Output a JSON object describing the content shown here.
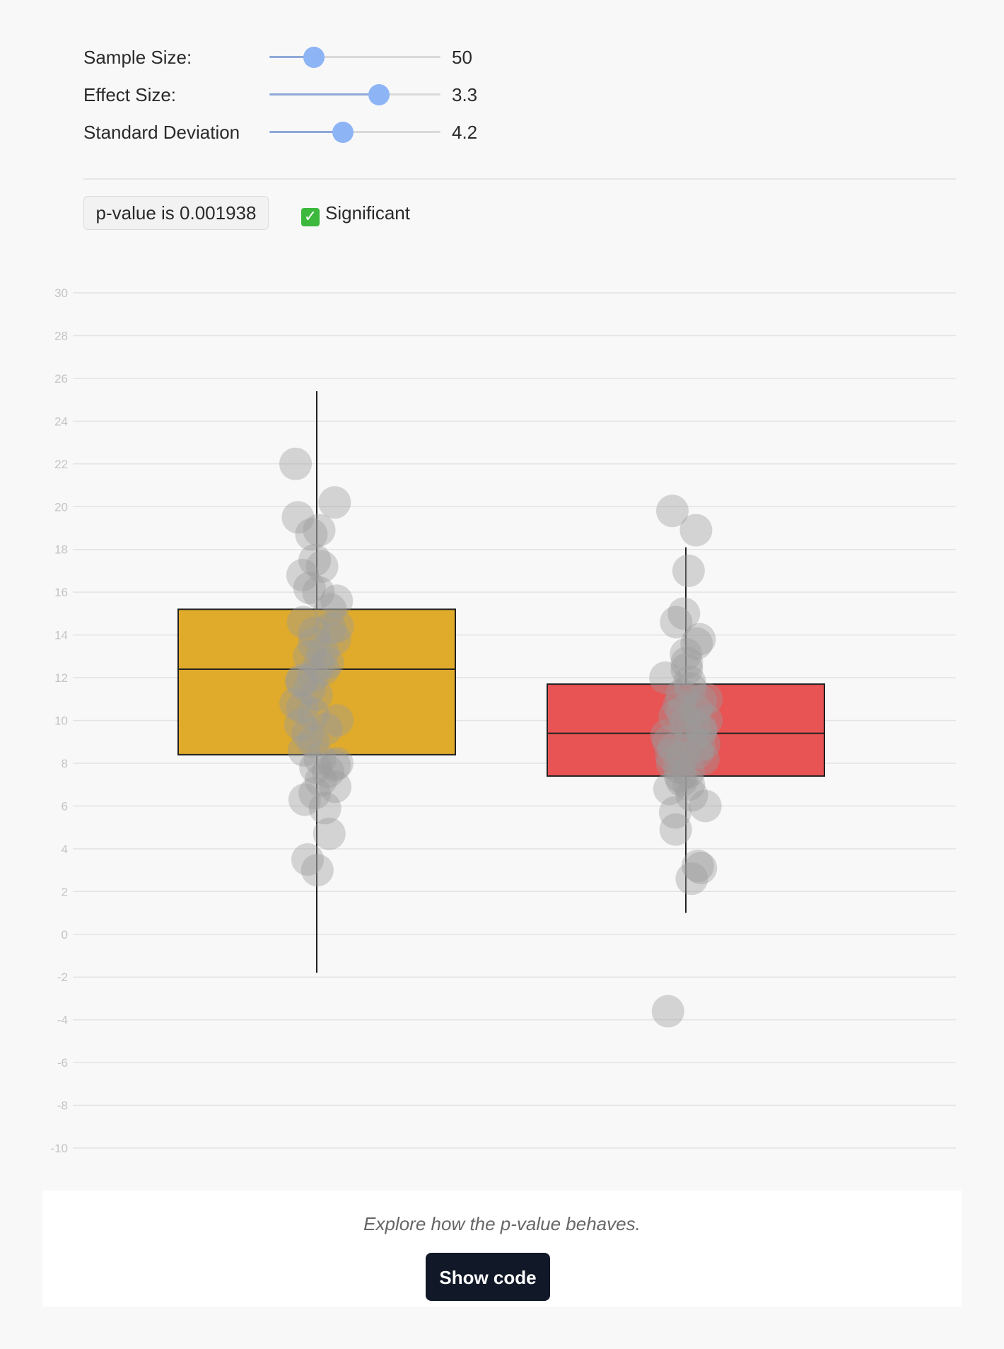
{
  "controls": [
    {
      "label": "Sample Size:",
      "value": "50",
      "fraction": 0.26
    },
    {
      "label": "Effect Size:",
      "value": "3.3",
      "fraction": 0.64
    },
    {
      "label": "Standard Deviation",
      "value": "4.2",
      "fraction": 0.43
    }
  ],
  "result": {
    "pvalue_text": "p-value is 0.001938",
    "significance_icon": "check-icon",
    "significance_text": "Significant"
  },
  "colors": {
    "group_a": "#e0ab2b",
    "group_b": "#e85354",
    "points": "#9a9a9a",
    "thumb": "#8db4f5"
  },
  "chart_data": {
    "type": "box",
    "ylim": [
      -10,
      30
    ],
    "yticks": [
      30,
      28,
      26,
      24,
      22,
      20,
      18,
      16,
      14,
      12,
      10,
      8,
      6,
      4,
      2,
      0,
      -2,
      -4,
      -6,
      -8,
      -10
    ],
    "grid": true,
    "series": [
      {
        "q1": 8.4,
        "median": 12.4,
        "q3": 15.2,
        "whisker_low": -1.8,
        "whisker_high": 25.4,
        "points": [
          22.0,
          20.2,
          19.5,
          18.9,
          18.7,
          17.5,
          17.2,
          16.8,
          16.2,
          16.0,
          15.6,
          15.2,
          14.6,
          14.4,
          14.3,
          14.1,
          13.8,
          13.6,
          13.2,
          13.0,
          12.7,
          12.6,
          12.4,
          12.1,
          11.8,
          11.5,
          11.2,
          10.8,
          10.6,
          10.3,
          10.0,
          9.6,
          9.4,
          9.0,
          8.6,
          8.2,
          8.0,
          7.9,
          7.8,
          7.6,
          7.2,
          6.9,
          6.6,
          6.3,
          5.9,
          4.7,
          3.5,
          3.0,
          11.9,
          9.8
        ]
      },
      {
        "q1": 7.4,
        "median": 9.4,
        "q3": 11.7,
        "whisker_low": 1.0,
        "whisker_high": 18.1,
        "points": [
          19.8,
          18.9,
          17.0,
          15.0,
          14.6,
          13.8,
          13.6,
          13.1,
          12.7,
          12.4,
          12.0,
          11.8,
          11.5,
          11.2,
          10.9,
          10.7,
          10.4,
          10.2,
          10.0,
          9.8,
          9.6,
          9.5,
          9.3,
          9.1,
          8.9,
          8.7,
          8.5,
          8.4,
          8.2,
          8.0,
          7.8,
          7.6,
          7.4,
          7.2,
          7.0,
          6.8,
          6.5,
          6.0,
          5.7,
          4.9,
          3.2,
          3.1,
          2.6,
          -3.6,
          9.9,
          8.8,
          10.5,
          9.0,
          8.3,
          11.0
        ]
      }
    ]
  },
  "footer": {
    "caption": "Explore how the p-value behaves.",
    "button": "Show code"
  }
}
